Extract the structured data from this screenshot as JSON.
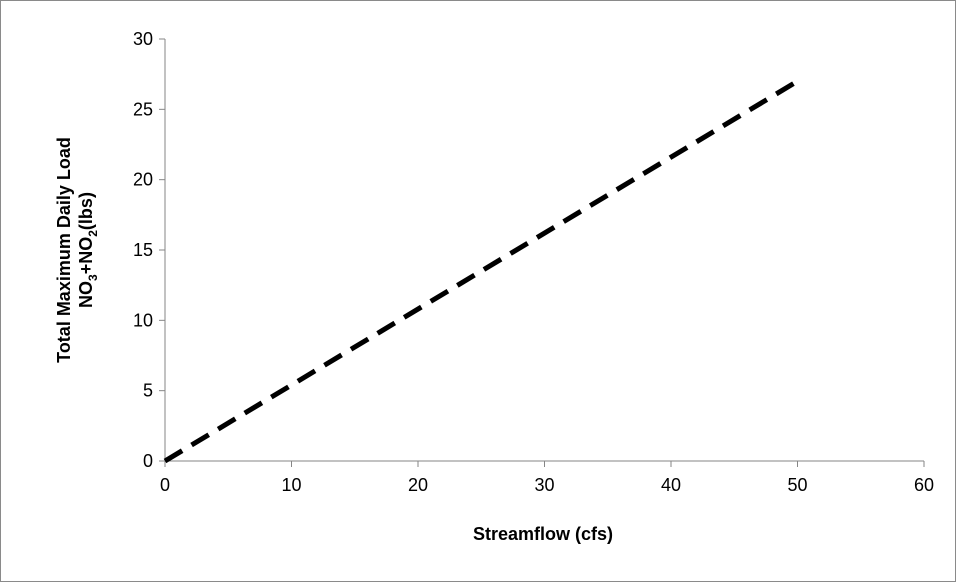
{
  "chart_data": {
    "type": "line",
    "title": "",
    "xlabel": "Streamflow (cfs)",
    "ylabel": {
      "line1": "Total Maximum Daily Load",
      "line2_prefix": "NO",
      "line2_sub1": "3",
      "line2_mid": "+NO",
      "line2_sub2": "2",
      "line2_suffix": "(lbs)"
    },
    "xlim": [
      0,
      60
    ],
    "ylim": [
      0,
      30
    ],
    "xticks": [
      0,
      10,
      20,
      30,
      40,
      50,
      60
    ],
    "yticks": [
      0,
      5,
      10,
      15,
      20,
      25,
      30
    ],
    "grid": false,
    "legend": "none",
    "series": [
      {
        "style": "dashed",
        "color": "#000000",
        "x": [
          0,
          50
        ],
        "y": [
          0,
          27
        ]
      }
    ]
  }
}
